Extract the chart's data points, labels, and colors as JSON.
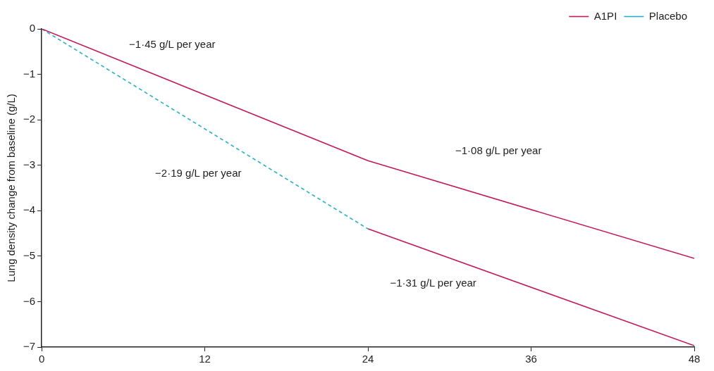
{
  "chart_data": {
    "type": "line",
    "ylabel": "Lung density change from baseline (g/L)",
    "xlim": [
      0,
      48
    ],
    "xticks": [
      0,
      12,
      24,
      36,
      48
    ],
    "ylim": [
      -7,
      0
    ],
    "yticks": [
      0,
      -1,
      -2,
      -3,
      -4,
      -5,
      -6,
      -7
    ],
    "grid": false,
    "legend": "top right",
    "marker": "none",
    "series": [
      {
        "name": "A1PI",
        "color": "#c2185b",
        "line_style": "solid",
        "x": [
          0,
          24,
          48
        ],
        "values": [
          0,
          -2.9,
          -5.05
        ]
      },
      {
        "name": "Placebo",
        "color": "#26b0c8",
        "line_style": "dashed",
        "x": [
          0,
          24
        ],
        "values": [
          0,
          -4.4
        ]
      },
      {
        "color": "#c2185b",
        "line_style": "solid",
        "x": [
          24,
          48
        ],
        "values": [
          -4.4,
          -6.97
        ]
      }
    ],
    "annotations": [
      "−1·45 g/L per year",
      "−1·08 g/L per year",
      "−2·19 g/L per year",
      "−1·31 g/L per year"
    ]
  }
}
